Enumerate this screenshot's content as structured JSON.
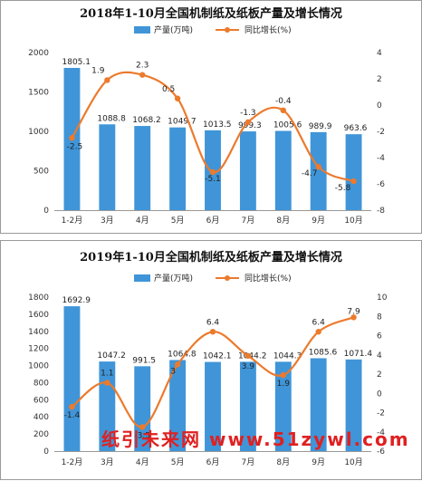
{
  "watermark": "纸引未来网 www.51zywl.com",
  "chart_data": [
    {
      "type": "bar",
      "title": "2018年1-10月全国机制纸及纸板产量及增长情况",
      "categories": [
        "1-2月",
        "3月",
        "4月",
        "5月",
        "6月",
        "7月",
        "8月",
        "9月",
        "10月"
      ],
      "series": [
        {
          "name": "产量(万吨)",
          "type": "bar",
          "axis": "left",
          "color": "#3f95d8",
          "values": [
            1805.1,
            1088.8,
            1068.2,
            1049.7,
            1013.5,
            999.3,
            1005.6,
            989.9,
            963.6
          ],
          "labels": [
            "1805.1",
            "1088.8",
            "1068.2",
            "1049.7",
            "1013.5",
            "999.3",
            "1005.6",
            "989.9",
            "963.6"
          ]
        },
        {
          "name": "同比增长(%)",
          "type": "line",
          "axis": "right",
          "color": "#ec7a2c",
          "values": [
            -2.5,
            1.9,
            2.3,
            0.5,
            -5.1,
            -1.3,
            -0.4,
            -4.7,
            -5.8
          ],
          "labels": [
            "-2.5",
            "1.9",
            "2.3",
            "0.5",
            "-5.1",
            "-1.3",
            "-0.4",
            "-4.7",
            "-5.8"
          ]
        }
      ],
      "ylim_left": [
        0,
        2000
      ],
      "yticks_left": [
        0,
        500,
        1000,
        1500,
        2000
      ],
      "ylim_right": [
        -8,
        4
      ],
      "yticks_right": [
        -8,
        -6,
        -4,
        -2,
        0,
        2,
        4
      ],
      "legend": "top-center",
      "grid": false
    },
    {
      "type": "bar",
      "title": "2019年1-10月全国机制纸及纸板产量及增长情况",
      "categories": [
        "1-2月",
        "3月",
        "4月",
        "5月",
        "6月",
        "7月",
        "8月",
        "9月",
        "10月"
      ],
      "series": [
        {
          "name": "产量(万吨)",
          "type": "bar",
          "axis": "left",
          "color": "#3f95d8",
          "values": [
            1692.9,
            1047.2,
            991.5,
            1064.8,
            1042.1,
            1044.2,
            1044.3,
            1085.6,
            1071.4
          ],
          "labels": [
            "1692.9",
            "1047.2",
            "991.5",
            "1064.8",
            "1042.1",
            "1044.2",
            "1044.3",
            "1085.6",
            "1071.4"
          ]
        },
        {
          "name": "同比增长(%)",
          "type": "line",
          "axis": "right",
          "color": "#ec7a2c",
          "values": [
            -1.4,
            1.1,
            -3.5,
            3.0,
            6.4,
            3.9,
            1.9,
            6.4,
            7.9
          ],
          "labels": [
            "-1.4",
            "1.1",
            "-3.5",
            "3",
            "6.4",
            "3.9",
            "1.9",
            "6.4",
            "7.9"
          ]
        }
      ],
      "ylim_left": [
        0,
        1800
      ],
      "yticks_left": [
        0,
        200,
        400,
        600,
        800,
        1000,
        1200,
        1400,
        1600,
        1800
      ],
      "ylim_right": [
        -6,
        10
      ],
      "yticks_right": [
        -6,
        -4,
        -2,
        0,
        2,
        4,
        6,
        8,
        10
      ],
      "legend": "top-center",
      "grid": false
    }
  ]
}
